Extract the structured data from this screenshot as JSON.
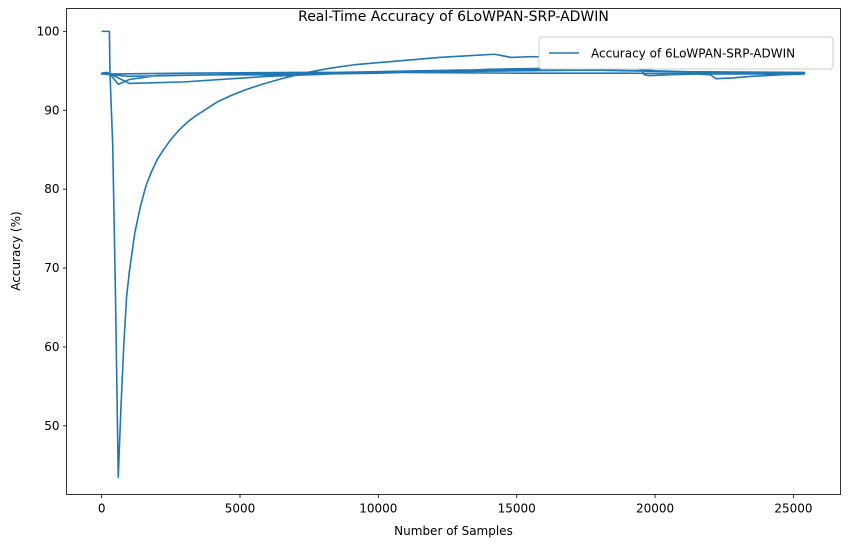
{
  "chart_data": {
    "type": "line",
    "title": "Real-Time Accuracy of 6LoWPAN-SRP-ADWIN",
    "xlabel": "Number of Samples",
    "ylabel": "Accuracy (%)",
    "xlim": [
      -1270,
      26700
    ],
    "ylim": [
      41.3,
      102.9
    ],
    "xticks": [
      0,
      5000,
      10000,
      15000,
      20000,
      25000
    ],
    "yticks": [
      50,
      60,
      70,
      80,
      90,
      100
    ],
    "grid": false,
    "legend": {
      "location": "upper right",
      "entries": [
        "Accuracy of 6LoWPAN-SRP-ADWIN"
      ]
    },
    "series_color": "#1f77b4",
    "series": [
      {
        "name": "Accuracy of 6LoWPAN-SRP-ADWIN",
        "x": [
          0,
          280,
          300,
          400,
          500,
          600,
          700,
          800,
          900,
          1000,
          1200,
          1400,
          1600,
          1800,
          2000,
          2200,
          2500,
          2800,
          3100,
          3400,
          3800,
          4200,
          4700,
          5200,
          5800,
          6500,
          7300,
          8200,
          9200,
          10200,
          11200,
          12200,
          13200,
          14200,
          14500,
          14800,
          15500,
          16500,
          17500,
          18500,
          19000,
          19300,
          19600,
          19800,
          20500,
          21500,
          22000,
          22200,
          22800,
          23500,
          24500,
          25400,
          24000,
          22000,
          20000,
          19000,
          18000,
          16000,
          14000,
          12000,
          10000,
          8000,
          6000,
          4000,
          2000,
          1000,
          600,
          300,
          100,
          0,
          200,
          1000,
          3000,
          6000,
          9000,
          12000,
          15000,
          18000,
          21000,
          25400,
          22000,
          19000,
          16000,
          13000,
          10000,
          7000,
          4000,
          1000,
          0,
          500,
          3000,
          7000,
          11000,
          15000,
          19000,
          23000,
          25400
        ],
        "y": [
          100,
          100,
          94.8,
          85.6,
          66.5,
          43.5,
          52.5,
          60.2,
          66.3,
          69.5,
          74.5,
          77.8,
          80.4,
          82.2,
          83.7,
          84.8,
          86.3,
          87.5,
          88.5,
          89.3,
          90.2,
          91.1,
          91.9,
          92.6,
          93.3,
          94.0,
          94.7,
          95.3,
          95.8,
          96.1,
          96.4,
          96.7,
          96.9,
          97.1,
          96.9,
          96.7,
          96.8,
          96.7,
          96.9,
          97.0,
          96.9,
          96.6,
          94.5,
          94.4,
          94.5,
          94.6,
          94.5,
          94.0,
          94.1,
          94.3,
          94.5,
          94.6,
          94.6,
          94.8,
          95.0,
          95.4,
          95.5,
          95.3,
          95.2,
          94.9,
          94.7,
          94.6,
          94.5,
          94.5,
          94.4,
          93.9,
          93.3,
          94.6,
          94.7,
          94.7,
          94.8,
          93.4,
          93.6,
          94.3,
          94.7,
          94.9,
          95.0,
          95.1,
          94.9,
          94.8,
          94.8,
          95.0,
          95.2,
          95.1,
          94.9,
          94.7,
          94.5,
          94.3,
          94.6,
          94.6,
          94.7,
          94.8,
          94.8,
          94.7,
          94.7,
          94.6,
          94.6
        ]
      }
    ]
  }
}
